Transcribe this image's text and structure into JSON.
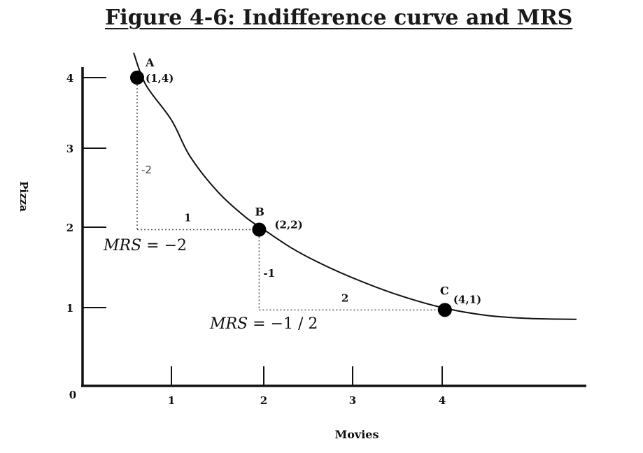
{
  "title": "Figure 4-6: Indifference curve and MRS",
  "chart_data": {
    "type": "line",
    "title": "Figure 4-6: Indifference curve and MRS",
    "xlabel": "Movies",
    "ylabel": "Pizza",
    "origin_label": "0",
    "xlim": [
      0,
      5.6
    ],
    "ylim": [
      0,
      4.4
    ],
    "x_ticks": [
      "1",
      "2",
      "3",
      "4"
    ],
    "y_ticks": [
      "1",
      "2",
      "3",
      "4"
    ],
    "grid": false,
    "series": [
      {
        "x": [
          0.78,
          0.85,
          1.0,
          1.2,
          1.5,
          1.8,
          2.0,
          2.3,
          2.6,
          3.0,
          3.5,
          4.0,
          4.5,
          5.0,
          5.5
        ],
        "y": [
          4.35,
          3.9,
          3.4,
          2.9,
          2.45,
          2.13,
          1.97,
          1.75,
          1.57,
          1.37,
          1.16,
          1.0,
          0.9,
          0.86,
          0.85
        ]
      }
    ],
    "points": [
      {
        "label": "A",
        "coords": "(1,4)",
        "x": 0.8,
        "y": 4.0
      },
      {
        "label": "B",
        "coords": "(2,2)",
        "x": 1.95,
        "y": 1.97
      },
      {
        "label": "C",
        "coords": "(4,1)",
        "x": 4.03,
        "y": 0.97
      }
    ],
    "annotations": [
      {
        "text": "-2",
        "kind": "vertical-change-A-to-B"
      },
      {
        "text": "1",
        "kind": "horizontal-change-A-to-B"
      },
      {
        "text": "-1",
        "kind": "vertical-change-B-to-C"
      },
      {
        "text": "2",
        "kind": "horizontal-change-B-to-C"
      },
      {
        "text": "MRS = −2",
        "kind": "mrs-A-to-B"
      },
      {
        "text": "MRS = −1 / 2",
        "kind": "mrs-B-to-C"
      }
    ]
  }
}
